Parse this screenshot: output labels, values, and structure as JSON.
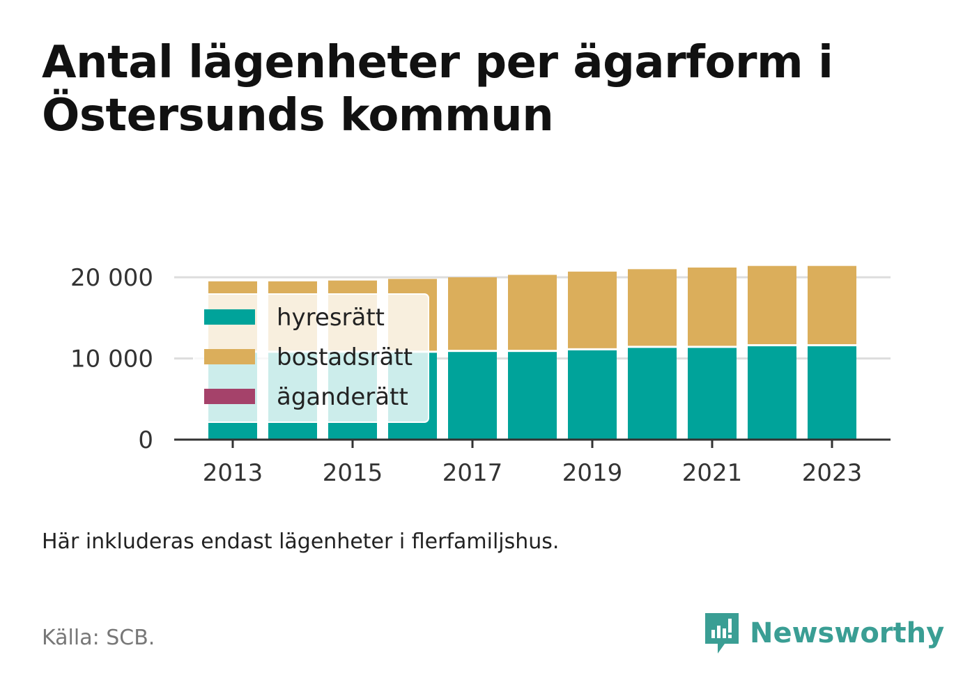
{
  "title": "Antal lägenheter per ägarform i Östersunds kommun",
  "note": "Här inkluderas endast lägenheter i flerfamiljshus.",
  "source": "Källa: SCB.",
  "brand": {
    "name": "Newsworthy",
    "icon": "newsworthy-logo-icon",
    "color": "#3a9e94"
  },
  "colors": {
    "hyresratt": "#00a39a",
    "bostadsratt": "#dbae5b",
    "aganderatt": "#a5426a",
    "grid": "#dddddd",
    "axis": "#333333"
  },
  "chart_data": {
    "type": "bar",
    "stacked": true,
    "categories": [
      "2013",
      "2014",
      "2015",
      "2016",
      "2017",
      "2018",
      "2019",
      "2020",
      "2021",
      "2022",
      "2023"
    ],
    "x_tick_labels": [
      "2013",
      "2015",
      "2017",
      "2019",
      "2021",
      "2023"
    ],
    "y_tick_labels": [
      "0",
      "10 000",
      "20 000"
    ],
    "y_ticks": [
      0,
      10000,
      20000
    ],
    "ylim": [
      0,
      21500
    ],
    "grid": true,
    "legend_position": "top-left",
    "series": [
      {
        "name": "hyresrätt",
        "color": "#00a39a",
        "values": [
          10700,
          10700,
          10700,
          10700,
          10800,
          10800,
          11000,
          11300,
          11300,
          11500,
          11500
        ]
      },
      {
        "name": "bostadsrätt",
        "color": "#dbae5b",
        "values": [
          8800,
          8800,
          8900,
          9100,
          9200,
          9500,
          9700,
          9700,
          9900,
          9900,
          9900
        ]
      },
      {
        "name": "äganderätt",
        "color": "#a5426a",
        "values": [
          0,
          0,
          0,
          0,
          0,
          0,
          0,
          0,
          0,
          0,
          0
        ]
      }
    ]
  }
}
